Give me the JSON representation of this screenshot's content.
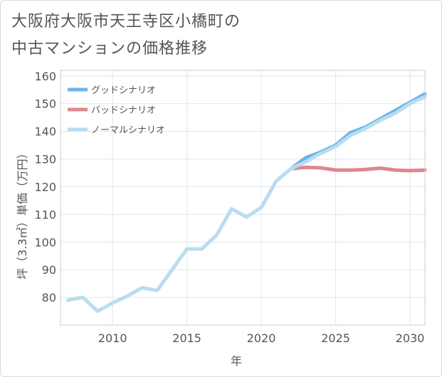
{
  "title_lines": [
    "大阪府大阪市天王寺区小橋町の",
    "中古マンションの価格推移"
  ],
  "chart_data": {
    "type": "line",
    "xlabel": "年",
    "ylabel": "坪（3.3㎡）単価（万円）",
    "xlim": [
      2006.5,
      2031
    ],
    "ylim": [
      70,
      162
    ],
    "x_ticks": [
      2010,
      2015,
      2020,
      2025,
      2030
    ],
    "y_ticks": [
      80,
      90,
      100,
      110,
      120,
      130,
      140,
      150,
      160
    ],
    "legend_position": "top-left",
    "grid": true,
    "series": [
      {
        "name": "グッドシナリオ",
        "color": "#6cb4e8",
        "x": [
          2022,
          2023,
          2024,
          2025,
          2026,
          2027,
          2028,
          2029,
          2030,
          2031
        ],
        "y": [
          126.5,
          130.5,
          132.5,
          135,
          139.5,
          141.5,
          144.5,
          147.5,
          150.5,
          153.5
        ]
      },
      {
        "name": "バッドシナリオ",
        "color": "#e0868f",
        "x": [
          2022,
          2023,
          2024,
          2025,
          2026,
          2027,
          2028,
          2029,
          2030,
          2031
        ],
        "y": [
          126.5,
          127,
          126.8,
          126,
          126,
          126.2,
          126.7,
          126,
          125.8,
          126
        ]
      },
      {
        "name": "ノーマルシナリオ",
        "color": "#b8ddf0",
        "x": [
          2007,
          2008,
          2009,
          2010,
          2011,
          2012,
          2013,
          2014,
          2015,
          2016,
          2017,
          2018,
          2019,
          2020,
          2021,
          2022,
          2023,
          2024,
          2025,
          2026,
          2027,
          2028,
          2029,
          2030,
          2031
        ],
        "y": [
          79,
          80,
          75,
          78,
          80.5,
          83.5,
          82.5,
          90,
          97.5,
          97.5,
          102.5,
          112,
          109,
          112.5,
          122,
          126.5,
          129,
          132,
          134.5,
          138.5,
          141,
          144,
          146.5,
          150,
          152.5
        ]
      }
    ]
  }
}
